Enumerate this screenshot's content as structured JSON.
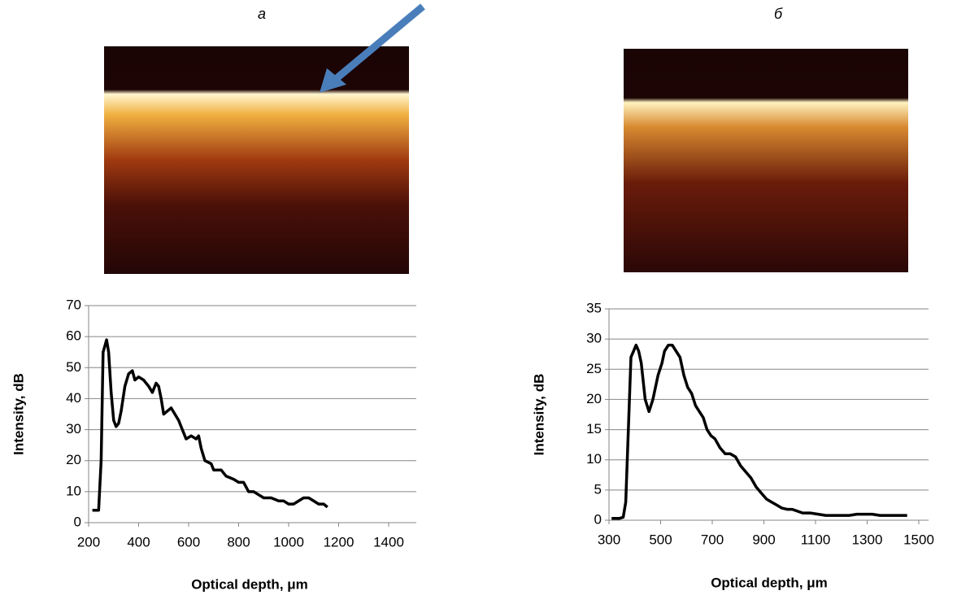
{
  "chart_data": [
    {
      "type": "line",
      "panel_label": "а",
      "x_label": "Optical depth, μm",
      "y_label": "Intensity, dB",
      "color": "#000000",
      "grid": true,
      "xlim": [
        200,
        1400
      ],
      "xticks": [
        200,
        400,
        600,
        800,
        1000,
        1200,
        1400
      ],
      "ylim": [
        0,
        70
      ],
      "yticks": [
        0,
        10,
        20,
        30,
        40,
        50,
        60,
        70
      ],
      "x": [
        215,
        230,
        240,
        250,
        258,
        265,
        272,
        280,
        290,
        300,
        310,
        320,
        330,
        345,
        360,
        375,
        385,
        400,
        420,
        440,
        455,
        470,
        480,
        490,
        500,
        515,
        530,
        545,
        560,
        575,
        590,
        610,
        630,
        640,
        650,
        665,
        690,
        700,
        730,
        750,
        780,
        800,
        820,
        840,
        860,
        880,
        900,
        930,
        960,
        980,
        1000,
        1020,
        1040,
        1060,
        1080,
        1100,
        1120,
        1140,
        1155
      ],
      "values": [
        4,
        4,
        4,
        20,
        55,
        57,
        59,
        55,
        42,
        33,
        31,
        32,
        36,
        44,
        48,
        49,
        46,
        47,
        46,
        44,
        42,
        45,
        44,
        40,
        35,
        36,
        37,
        35,
        33,
        30,
        27,
        28,
        27,
        28,
        24,
        20,
        19,
        17,
        17,
        15,
        14,
        13,
        13,
        10,
        10,
        9,
        8,
        8,
        7,
        7,
        6,
        6,
        7,
        8,
        8,
        7,
        6,
        6,
        5
      ]
    },
    {
      "type": "line",
      "panel_label": "б",
      "x_label": "Optical depth, μm",
      "y_label": "Intensity, dB",
      "color": "#000000",
      "grid": true,
      "xlim": [
        300,
        1500
      ],
      "xticks": [
        300,
        500,
        700,
        900,
        1100,
        1300,
        1500
      ],
      "ylim": [
        0,
        35
      ],
      "yticks": [
        0,
        5,
        10,
        15,
        20,
        25,
        30,
        35
      ],
      "x": [
        310,
        340,
        355,
        365,
        375,
        385,
        395,
        405,
        415,
        425,
        440,
        455,
        470,
        490,
        505,
        515,
        530,
        545,
        560,
        575,
        590,
        605,
        620,
        635,
        650,
        665,
        680,
        695,
        710,
        730,
        750,
        770,
        790,
        810,
        830,
        850,
        870,
        890,
        910,
        930,
        950,
        970,
        990,
        1010,
        1030,
        1050,
        1080,
        1110,
        1140,
        1170,
        1200,
        1230,
        1260,
        1290,
        1320,
        1350,
        1380,
        1410,
        1440,
        1455
      ],
      "values": [
        0.3,
        0.3,
        0.5,
        3,
        15,
        27,
        28,
        29,
        28,
        26,
        20,
        18,
        20,
        24,
        26,
        28,
        29,
        29,
        28,
        27,
        24,
        22,
        21,
        19,
        18,
        17,
        15,
        14,
        13.5,
        12,
        11,
        11,
        10.5,
        9,
        8,
        7,
        5.5,
        4.5,
        3.5,
        3,
        2.5,
        2,
        1.8,
        1.8,
        1.5,
        1.2,
        1.2,
        1,
        0.8,
        0.8,
        0.8,
        0.8,
        1,
        1,
        1,
        0.8,
        0.8,
        0.8,
        0.8,
        0.8
      ]
    }
  ]
}
